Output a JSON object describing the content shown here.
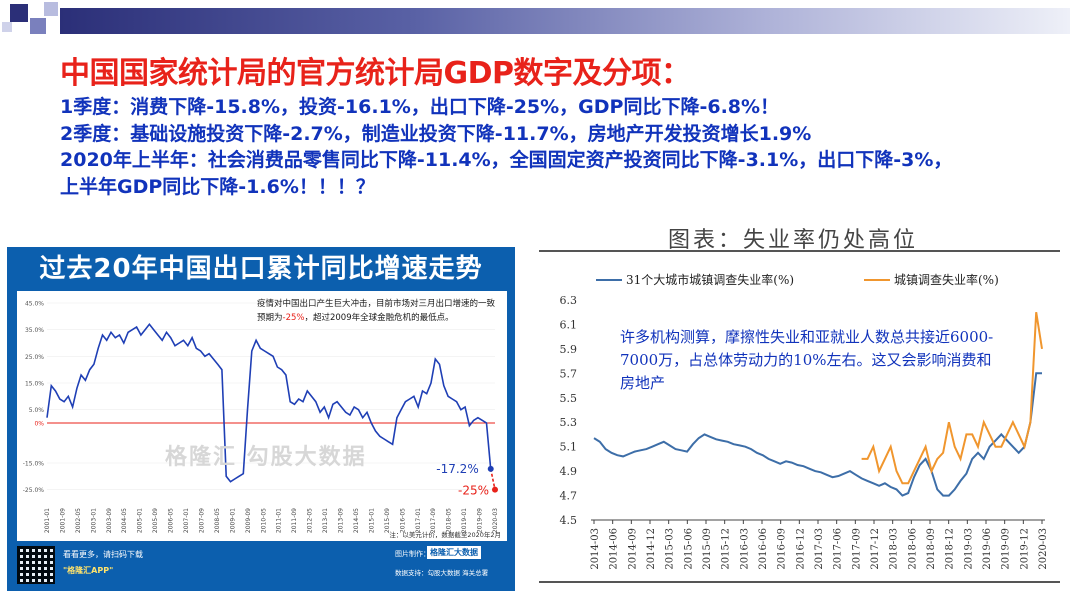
{
  "slide": {
    "title": "中国国家统计局的官方统计局GDP数字及分项：",
    "lines": [
      "1季度：消费下降-15.8%，投资-16.1%，出口下降-25%，GDP同比下降-6.8%！",
      "2季度：基础设施投资下降-2.7%，制造业投资下降-11.7%，房地产开发投资增长1.9%",
      "2020年上半年：社会消费品零售同比下降-11.4%，全国固定资产投资同比下降-3.1%，出口下降-3%，",
      "上半年GDP同比下降-1.6%！！！？"
    ],
    "colors": {
      "title": "#e8221a",
      "body": "#1133bb",
      "panel_blue": "#0c5fae"
    }
  },
  "chart_data": [
    {
      "type": "line",
      "title": "过去20年中国出口累计同比增速走势",
      "note": "疫情对中国出口产生巨大冲击，目前市场对三月出口增速的一致预期为-25%，超过2009年全球金融危机的最低点。",
      "note_parts": [
        "疫情对中国出口产生巨大冲击，目前市场对三月出口增速的一致预期为",
        "-25%",
        "，超过2009年全球金融危机的最低点。"
      ],
      "ylim": [
        -30,
        45
      ],
      "yticks": [
        "45.0%",
        "35.0%",
        "25.0%",
        "15.0%",
        "5.0%",
        "0%",
        "-15.0%",
        "-25.0%"
      ],
      "ytick_values": [
        45,
        35,
        25,
        15,
        5,
        0,
        -15,
        -25
      ],
      "x_ticks": [
        "2001-01",
        "2001-09",
        "2002-05",
        "2003-01",
        "2003-09",
        "2004-05",
        "2005-01",
        "2005-09",
        "2006-05",
        "2007-01",
        "2007-09",
        "2008-05",
        "2009-01",
        "2009-09",
        "2010-05",
        "2011-01",
        "2011-09",
        "2012-05",
        "2013-01",
        "2013-09",
        "2014-05",
        "2015-01",
        "2015-09",
        "2016-05",
        "2017-01",
        "2017-09",
        "2018-05",
        "2019-01",
        "2019-09",
        "2020-03"
      ],
      "annotations": [
        {
          "label": "-17.2%",
          "x": "2020-02",
          "y": -17.2
        },
        {
          "label": "-25%",
          "x": "2020-03",
          "y": -25
        }
      ],
      "series": [
        {
          "values": [
            2,
            14,
            12,
            9,
            8,
            10,
            6,
            13,
            18,
            16,
            20,
            22,
            28,
            33,
            31,
            34,
            32,
            33,
            30,
            34,
            35,
            36,
            33,
            35,
            37,
            35,
            33,
            31,
            34,
            32,
            29,
            30,
            31,
            29,
            32,
            28,
            27,
            25,
            26,
            24,
            22,
            20,
            -20,
            -22,
            -21,
            -20,
            -19,
            5,
            27,
            31,
            28,
            27,
            26,
            25,
            21,
            20,
            18,
            8,
            7,
            9,
            8,
            12,
            10,
            8,
            4,
            6,
            2,
            7,
            8,
            6,
            4,
            3,
            6,
            5,
            2,
            4,
            0,
            -3,
            -5,
            -6,
            -7,
            -8,
            2,
            5,
            8,
            9,
            10,
            6,
            12,
            11,
            15,
            24,
            22,
            14,
            10,
            9,
            8,
            5,
            6,
            -1,
            1,
            2,
            1,
            0,
            -17.2,
            -25
          ]
        }
      ],
      "logo_text": "格隆汇",
      "watermark": "格隆汇 勾股大数据",
      "source": "注：以美元计价，数据截至2020年2月",
      "footer_left1": "看看更多，请扫码下载",
      "footer_left2": "\"格隆汇APP\"",
      "footer_right1": "图片制作：",
      "footer_right_logo": "格隆汇大数据",
      "footer_right2": "数据支持：勾股大数据  海关总署"
    },
    {
      "type": "line",
      "title": "图表：失业率仍处高位",
      "ylim": [
        4.5,
        6.3
      ],
      "yticks": [
        "6.3",
        "6.1",
        "5.9",
        "5.7",
        "5.5",
        "5.3",
        "5.1",
        "4.9",
        "4.7",
        "4.5"
      ],
      "ytick_values": [
        6.3,
        6.1,
        5.9,
        5.7,
        5.5,
        5.3,
        5.1,
        4.9,
        4.7,
        4.5
      ],
      "x_ticks": [
        "2014-03",
        "2014-06",
        "2014-09",
        "2014-12",
        "2015-03",
        "2015-06",
        "2015-09",
        "2015-12",
        "2016-03",
        "2016-06",
        "2016-09",
        "2016-12",
        "2017-03",
        "2017-06",
        "2017-09",
        "2017-12",
        "2018-03",
        "2018-06",
        "2018-09",
        "2018-12",
        "2019-03",
        "2019-06",
        "2019-09",
        "2019-12",
        "2020-03"
      ],
      "annotation": "许多机构测算，摩擦性失业和亚就业人数总共接近6000-7000万，占总体劳动力的10%左右。这又会影响消费和房地产",
      "series": [
        {
          "name": "31个大城市城镇调查失业率(%)",
          "color": "#3d6ea8",
          "x_start_index": 0,
          "values": [
            5.17,
            5.14,
            5.08,
            5.05,
            5.03,
            5.02,
            5.04,
            5.06,
            5.07,
            5.08,
            5.1,
            5.12,
            5.14,
            5.11,
            5.08,
            5.07,
            5.06,
            5.12,
            5.17,
            5.2,
            5.18,
            5.16,
            5.15,
            5.14,
            5.12,
            5.11,
            5.1,
            5.08,
            5.05,
            5.03,
            5.0,
            4.98,
            4.96,
            4.98,
            4.97,
            4.95,
            4.94,
            4.92,
            4.9,
            4.89,
            4.87,
            4.85,
            4.86,
            4.88,
            4.9,
            4.87,
            4.84,
            4.82,
            4.8,
            4.78,
            4.8,
            4.77,
            4.75,
            4.7,
            4.72,
            4.85,
            4.95,
            5.0,
            4.9,
            4.75,
            4.7,
            4.7,
            4.75,
            4.82,
            4.88,
            5.0,
            5.05,
            5.0,
            5.1,
            5.15,
            5.2,
            5.15,
            5.1,
            5.05,
            5.1,
            5.3,
            5.7,
            5.7
          ]
        },
        {
          "name": "城镇调查失业率(%)",
          "color": "#f0962e",
          "x_start_index": 46,
          "values": [
            5.0,
            5.0,
            5.1,
            4.9,
            5.0,
            5.1,
            4.9,
            4.8,
            4.8,
            4.9,
            5.0,
            5.1,
            4.9,
            5.0,
            5.05,
            5.3,
            5.1,
            5.0,
            5.2,
            5.2,
            5.1,
            5.3,
            5.2,
            5.1,
            5.1,
            5.2,
            5.3,
            5.2,
            5.1,
            5.3,
            6.2,
            5.9
          ]
        }
      ]
    }
  ]
}
